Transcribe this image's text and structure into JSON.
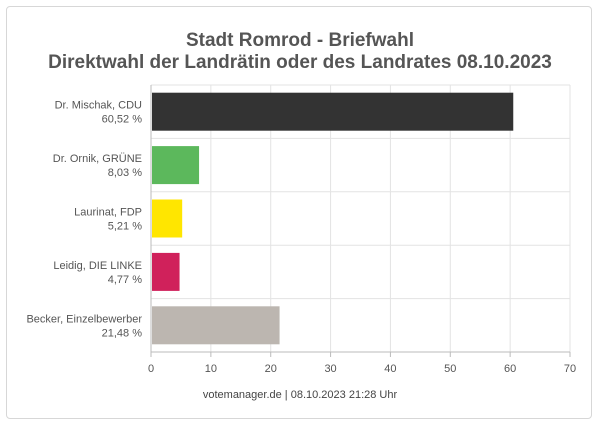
{
  "chart_data": {
    "type": "bar",
    "orientation": "horizontal",
    "title_line1": "Stadt Romrod - Briefwahl",
    "title_line2": "Direktwahl der Landrätin oder des Landrates 08.10.2023",
    "categories": [
      {
        "name": "Dr. Mischak, CDU",
        "percent_label": "60,52 %",
        "value": 60.52,
        "color": "#333333"
      },
      {
        "name": "Dr. Ornik, GRÜNE",
        "percent_label": "8,03 %",
        "value": 8.03,
        "color": "#5cb85c"
      },
      {
        "name": "Laurinat, FDP",
        "percent_label": "5,21 %",
        "value": 5.21,
        "color": "#ffe600"
      },
      {
        "name": "Leidig, DIE LINKE",
        "percent_label": "4,77 %",
        "value": 4.77,
        "color": "#d0215b"
      },
      {
        "name": "Becker, Einzelbewerber",
        "percent_label": "21,48 %",
        "value": 21.48,
        "color": "#bcb6b0"
      }
    ],
    "xlim": [
      0,
      70
    ],
    "x_ticks": [
      0,
      10,
      20,
      30,
      40,
      50,
      60,
      70
    ],
    "grid": true,
    "footer": "votemanager.de | 08.10.2023 21:28 Uhr"
  }
}
